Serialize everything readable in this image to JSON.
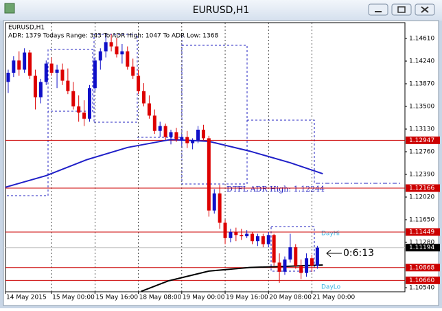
{
  "window_title": "EURUSD,H1",
  "chart_data": {
    "type": "candlestick",
    "title": "EURUSD,H1",
    "subtitle": "ADR: 1379  Todays Range: 343  To ADR High: 1047  To ADR Low: 1368",
    "up_color": "#1010c8",
    "down_color": "#dd0000",
    "grid": true,
    "x": [
      1,
      3,
      5,
      7,
      9,
      11,
      13,
      15,
      17,
      19,
      21,
      23,
      25,
      27,
      29,
      31,
      33,
      35,
      37,
      39,
      41,
      43,
      45,
      47,
      49,
      51,
      53,
      55,
      57,
      59,
      61,
      63,
      65,
      67,
      69,
      71,
      73,
      75,
      77,
      79,
      81,
      83,
      85,
      87,
      89,
      91,
      93,
      95,
      97,
      99,
      101,
      103,
      105,
      107,
      109,
      111,
      113,
      115
    ],
    "ohlc": [
      [
        1.139,
        1.141,
        1.1372,
        1.1405
      ],
      [
        1.1405,
        1.1432,
        1.1398,
        1.1425
      ],
      [
        1.1425,
        1.144,
        1.14,
        1.141
      ],
      [
        1.141,
        1.1445,
        1.1405,
        1.1438
      ],
      [
        1.1438,
        1.1442,
        1.1395,
        1.14
      ],
      [
        1.14,
        1.141,
        1.1345,
        1.1365
      ],
      [
        1.1365,
        1.1395,
        1.1355,
        1.139
      ],
      [
        1.139,
        1.1425,
        1.1385,
        1.142
      ],
      [
        1.142,
        1.143,
        1.14,
        1.1405
      ],
      [
        1.1405,
        1.1418,
        1.138,
        1.141
      ],
      [
        1.141,
        1.142,
        1.1385,
        1.1392
      ],
      [
        1.1392,
        1.1412,
        1.137,
        1.1375
      ],
      [
        1.1375,
        1.139,
        1.1345,
        1.135
      ],
      [
        1.135,
        1.1368,
        1.1325,
        1.134
      ],
      [
        1.134,
        1.136,
        1.1318,
        1.133
      ],
      [
        1.133,
        1.1385,
        1.1325,
        1.138
      ],
      [
        1.138,
        1.143,
        1.1375,
        1.1425
      ],
      [
        1.1425,
        1.1445,
        1.141,
        1.144
      ],
      [
        1.144,
        1.1465,
        1.143,
        1.1455
      ],
      [
        1.1455,
        1.1468,
        1.144,
        1.1448
      ],
      [
        1.1448,
        1.1462,
        1.143,
        1.1435
      ],
      [
        1.1435,
        1.1452,
        1.142,
        1.144
      ],
      [
        1.144,
        1.1448,
        1.141,
        1.1415
      ],
      [
        1.1415,
        1.1428,
        1.1395,
        1.14
      ],
      [
        1.14,
        1.141,
        1.137,
        1.1375
      ],
      [
        1.1375,
        1.1388,
        1.135,
        1.1355
      ],
      [
        1.1355,
        1.1368,
        1.133,
        1.1335
      ],
      [
        1.1335,
        1.1345,
        1.1305,
        1.131
      ],
      [
        1.131,
        1.1325,
        1.13,
        1.1318
      ],
      [
        1.1318,
        1.1322,
        1.1295,
        1.13
      ],
      [
        1.13,
        1.1312,
        1.1288,
        1.1308
      ],
      [
        1.1308,
        1.1315,
        1.1292,
        1.1296
      ],
      [
        1.1296,
        1.1305,
        1.1285,
        1.13
      ],
      [
        1.13,
        1.131,
        1.1282,
        1.129
      ],
      [
        1.129,
        1.1298,
        1.128,
        1.1295
      ],
      [
        1.1295,
        1.1318,
        1.129,
        1.1312
      ],
      [
        1.1312,
        1.132,
        1.1295,
        1.1298
      ],
      [
        1.1298,
        1.1302,
        1.117,
        1.118
      ],
      [
        1.118,
        1.1215,
        1.1175,
        1.1208
      ],
      [
        1.1208,
        1.1222,
        1.115,
        1.116
      ],
      [
        1.116,
        1.1165,
        1.1125,
        1.1135
      ],
      [
        1.1135,
        1.115,
        1.1128,
        1.1145
      ],
      [
        1.1145,
        1.1152,
        1.113,
        1.114
      ],
      [
        1.114,
        1.115,
        1.1132,
        1.1138
      ],
      [
        1.1138,
        1.1148,
        1.1135,
        1.1142
      ],
      [
        1.1142,
        1.1145,
        1.1125,
        1.113
      ],
      [
        1.113,
        1.1142,
        1.1122,
        1.1138
      ],
      [
        1.1138,
        1.1142,
        1.112,
        1.1125
      ],
      [
        1.1125,
        1.1145,
        1.112,
        1.114
      ],
      [
        1.114,
        1.1142,
        1.109,
        1.1095
      ],
      [
        1.1095,
        1.111,
        1.1062,
        1.108
      ],
      [
        1.108,
        1.1105,
        1.1075,
        1.11
      ],
      [
        1.11,
        1.1142,
        1.1095,
        1.112
      ],
      [
        1.112,
        1.1125,
        1.1085,
        1.109
      ],
      [
        1.109,
        1.11,
        1.1068,
        1.1078
      ],
      [
        1.1078,
        1.111,
        1.1072,
        1.1102
      ],
      [
        1.1102,
        1.1108,
        1.108,
        1.109
      ],
      [
        1.109,
        1.11225,
        1.1085,
        1.11194
      ]
    ],
    "lines": [
      {
        "color": "#1f1fc8",
        "x": [
          0,
          15,
          30,
          45,
          61,
          75,
          90,
          105,
          117
        ],
        "values": [
          1.1218,
          1.1237,
          1.1263,
          1.1283,
          1.1296,
          1.1293,
          1.1277,
          1.1258,
          1.124
        ]
      },
      {
        "color": "#000000",
        "x": [
          50,
          60,
          75,
          90,
          105,
          117
        ],
        "values": [
          1.1048,
          1.1065,
          1.1081,
          1.1087,
          1.1089,
          1.1091
        ]
      }
    ],
    "levels": [
      {
        "value": 1.12947,
        "color": "#cc0000"
      },
      {
        "value": 1.12166,
        "color": "#cc0000"
      },
      {
        "value": 1.11449,
        "color": "#cc0000"
      },
      {
        "value": 1.11194,
        "color": "#000000"
      },
      {
        "value": 1.10868,
        "color": "#cc0000"
      },
      {
        "value": {
          "value": 1.1066,
          "label": "1.10660"
        },
        "color": "#cc0000"
      }
    ],
    "adr_high": {
      "value": 1.12244,
      "text": "DTFL ADR High: 1.12244"
    },
    "day_hi": "DayHi",
    "day_lo": "DayLo",
    "countdown": "0:6:13",
    "xlim": [
      0,
      147.3
    ],
    "ylim": [
      1.10473,
      1.14868
    ],
    "xticks": [
      {
        "value": 0,
        "label": "14 May 2015"
      },
      {
        "value": 17,
        "label": "15 May 00:00"
      },
      {
        "value": 33,
        "label": "15 May 16:00"
      },
      {
        "value": 49,
        "label": "18 May 08:00"
      },
      {
        "value": 65,
        "label": "19 May 00:00"
      },
      {
        "value": 81,
        "label": "19 May 16:00"
      },
      {
        "value": 97,
        "label": "20 May 08:00"
      },
      {
        "value": 113,
        "label": "21 May 00:00"
      }
    ],
    "yticks": [
      {
        "value": 1.1461,
        "label": "1.14610"
      },
      {
        "value": 1.1424,
        "label": "1.14240"
      },
      {
        "value": 1.1387,
        "label": "1.13870"
      },
      {
        "value": 1.135,
        "label": "1.13500"
      },
      {
        "value": 1.1313,
        "label": "1.13130"
      },
      {
        "value": 1.1276,
        "label": "1.12760"
      },
      {
        "value": 1.1239,
        "label": "1.12390"
      },
      {
        "value": 1.1202,
        "label": "1.12020"
      },
      {
        "value": 1.1165,
        "label": "1.11650"
      },
      {
        "value": 1.1128,
        "label": "1.11280"
      },
      {
        "value": 1.1054,
        "label": "1.10540"
      }
    ]
  }
}
